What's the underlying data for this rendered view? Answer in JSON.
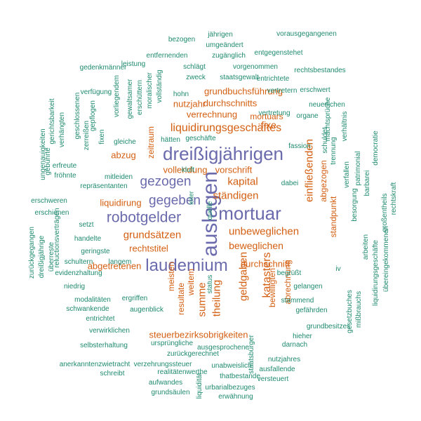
{
  "colors": {
    "large": "#6a6aad",
    "medium": "#d45f12",
    "small": "#1f8a6f"
  },
  "words": [
    {
      "text": "auslagen",
      "color": "large",
      "vertical": true
    },
    {
      "text": "mortuar",
      "color": "large"
    },
    {
      "text": "dreißigjährigen",
      "color": "large"
    },
    {
      "text": "laudemium",
      "color": "large"
    },
    {
      "text": "robotgelder",
      "color": "large"
    },
    {
      "text": "gegeben",
      "color": "large"
    },
    {
      "text": "gezogen",
      "color": "large"
    },
    {
      "text": "liquidirungsgeschäftes",
      "color": "medium"
    },
    {
      "text": "unbeweglichen",
      "color": "medium"
    },
    {
      "text": "beweglichen",
      "color": "medium"
    },
    {
      "text": "grundsätzen",
      "color": "medium"
    },
    {
      "text": "ständigen",
      "color": "medium"
    },
    {
      "text": "kapital",
      "color": "medium"
    },
    {
      "text": "einfließenden",
      "color": "medium",
      "vertical": true
    },
    {
      "text": "katasters",
      "color": "medium",
      "vertical": true
    },
    {
      "text": "geldgaben",
      "color": "medium",
      "vertical": true
    },
    {
      "text": "theilung",
      "color": "medium",
      "vertical": true
    },
    {
      "text": "summe",
      "color": "medium",
      "vertical": true
    },
    {
      "text": "fixe",
      "color": "medium"
    },
    {
      "text": "vollendung",
      "color": "medium"
    },
    {
      "text": "vorschrift",
      "color": "medium"
    },
    {
      "text": "verrechnung",
      "color": "medium"
    },
    {
      "text": "durchschnitts",
      "color": "medium"
    },
    {
      "text": "grundbuchsführung",
      "color": "medium"
    },
    {
      "text": "nutzjahr",
      "color": "medium"
    },
    {
      "text": "steuerbezirksobrigkeiten",
      "color": "medium"
    },
    {
      "text": "abgetretenen",
      "color": "medium"
    },
    {
      "text": "durchschnitt",
      "color": "medium"
    },
    {
      "text": "rechtstitel",
      "color": "medium"
    },
    {
      "text": "liquidirung",
      "color": "medium"
    },
    {
      "text": "abzug",
      "color": "medium"
    },
    {
      "text": "mortuars",
      "color": "medium"
    },
    {
      "text": "abgezogen",
      "color": "medium",
      "vertical": true
    },
    {
      "text": "standpunkt",
      "color": "medium",
      "vertical": true
    },
    {
      "text": "weitem",
      "color": "medium",
      "vertical": true
    },
    {
      "text": "resultate",
      "color": "medium",
      "vertical": true
    },
    {
      "text": "meisten",
      "color": "medium",
      "vertical": true
    },
    {
      "text": "bewilligten",
      "color": "medium",
      "vertical": true
    },
    {
      "text": "abrechnung",
      "color": "medium",
      "vertical": true
    },
    {
      "text": "zeitraum",
      "color": "medium",
      "vertical": true
    },
    {
      "text": "jährigen",
      "color": "small"
    },
    {
      "text": "vorausgegangenen",
      "color": "small"
    },
    {
      "text": "bezogen",
      "color": "small"
    },
    {
      "text": "umgeändert",
      "color": "small"
    },
    {
      "text": "zugänglich",
      "color": "small"
    },
    {
      "text": "entgegenstehet",
      "color": "small"
    },
    {
      "text": "entfernenden",
      "color": "small"
    },
    {
      "text": "leistung",
      "color": "small"
    },
    {
      "text": "schlägt",
      "color": "small"
    },
    {
      "text": "vorgenommen",
      "color": "small"
    },
    {
      "text": "zweck",
      "color": "small"
    },
    {
      "text": "staatsgewalt",
      "color": "small"
    },
    {
      "text": "entrichtete",
      "color": "small"
    },
    {
      "text": "rechtsbestandes",
      "color": "small"
    },
    {
      "text": "hohn",
      "color": "small"
    },
    {
      "text": "vertretern",
      "color": "small"
    },
    {
      "text": "erschwert",
      "color": "small"
    },
    {
      "text": "verfügung",
      "color": "small"
    },
    {
      "text": "vertretung",
      "color": "small"
    },
    {
      "text": "organe",
      "color": "small"
    },
    {
      "text": "neuerlichen",
      "color": "small"
    },
    {
      "text": "hätten",
      "color": "small"
    },
    {
      "text": "geschäfte",
      "color": "small"
    },
    {
      "text": "gleiche",
      "color": "small"
    },
    {
      "text": "kluft",
      "color": "small"
    },
    {
      "text": "erfreute",
      "color": "small"
    },
    {
      "text": "fröhnte",
      "color": "small"
    },
    {
      "text": "mitleiden",
      "color": "small"
    },
    {
      "text": "repräsentanten",
      "color": "small"
    },
    {
      "text": "dabei",
      "color": "small"
    },
    {
      "text": "erschweren",
      "color": "small"
    },
    {
      "text": "erschienen",
      "color": "small"
    },
    {
      "text": "setzt",
      "color": "small"
    },
    {
      "text": "handelte",
      "color": "small"
    },
    {
      "text": "geringste",
      "color": "small"
    },
    {
      "text": "schultern",
      "color": "small"
    },
    {
      "text": "langem",
      "color": "small"
    },
    {
      "text": "evidenzhaltung",
      "color": "small"
    },
    {
      "text": "niedrig",
      "color": "small"
    },
    {
      "text": "begrüßt",
      "color": "small"
    },
    {
      "text": "gelangen",
      "color": "small"
    },
    {
      "text": "stammend",
      "color": "small"
    },
    {
      "text": "gefährden",
      "color": "small"
    },
    {
      "text": "modalitäten",
      "color": "small"
    },
    {
      "text": "ergriffen",
      "color": "small"
    },
    {
      "text": "schwankende",
      "color": "small"
    },
    {
      "text": "augenblick",
      "color": "small"
    },
    {
      "text": "entrichtet",
      "color": "small"
    },
    {
      "text": "verwirklichen",
      "color": "small"
    },
    {
      "text": "grundbesitzes",
      "color": "small"
    },
    {
      "text": "hieher",
      "color": "small"
    },
    {
      "text": "selbsterhaltung",
      "color": "small"
    },
    {
      "text": "ursprüngliche",
      "color": "small"
    },
    {
      "text": "ausgesprochene",
      "color": "small"
    },
    {
      "text": "darnach",
      "color": "small"
    },
    {
      "text": "zurückgerechnet",
      "color": "small"
    },
    {
      "text": "anerkanntenzwietracht",
      "color": "small"
    },
    {
      "text": "verzehrungssteuer",
      "color": "small"
    },
    {
      "text": "unabweislich",
      "color": "small"
    },
    {
      "text": "nutzjahres",
      "color": "small"
    },
    {
      "text": "ausfallende",
      "color": "small"
    },
    {
      "text": "schreibt",
      "color": "small"
    },
    {
      "text": "realitätenwerthe",
      "color": "small"
    },
    {
      "text": "thatbestande",
      "color": "small"
    },
    {
      "text": "versteuert",
      "color": "small"
    },
    {
      "text": "aufwandes",
      "color": "small"
    },
    {
      "text": "urbarialbezuges",
      "color": "small"
    },
    {
      "text": "grundsäulen",
      "color": "small"
    },
    {
      "text": "erwähnung",
      "color": "small"
    },
    {
      "text": "gedenkmänner",
      "color": "small"
    },
    {
      "text": "vorliegendem",
      "color": "small",
      "vertical": true
    },
    {
      "text": "gewaltsamer",
      "color": "small",
      "vertical": true
    },
    {
      "text": "erschüttern",
      "color": "small",
      "vertical": true
    },
    {
      "text": "moralischer",
      "color": "small",
      "vertical": true
    },
    {
      "text": "vollständig",
      "color": "small",
      "vertical": true
    },
    {
      "text": "geschlossenen",
      "color": "small",
      "vertical": true
    },
    {
      "text": "zerreißen",
      "color": "small",
      "vertical": true
    },
    {
      "text": "gepflogen",
      "color": "small",
      "vertical": true
    },
    {
      "text": "fixen",
      "color": "small",
      "vertical": true
    },
    {
      "text": "gerichtsbarkeit",
      "color": "small",
      "vertical": true
    },
    {
      "text": "verhängten",
      "color": "small",
      "vertical": true
    },
    {
      "text": "gebührte",
      "color": "small",
      "vertical": true
    },
    {
      "text": "ungenauigkeiten",
      "color": "small",
      "vertical": true
    },
    {
      "text": "machtsprüche",
      "color": "small",
      "vertical": true
    },
    {
      "text": "verhältnis",
      "color": "small",
      "vertical": true
    },
    {
      "text": "fassion",
      "color": "small"
    },
    {
      "text": "schuldet",
      "color": "small",
      "vertical": true
    },
    {
      "text": "trennung",
      "color": "small",
      "vertical": true
    },
    {
      "text": "verfallen",
      "color": "small",
      "vertical": true
    },
    {
      "text": "patrimonial",
      "color": "small",
      "vertical": true
    },
    {
      "text": "barbarei",
      "color": "small",
      "vertical": true
    },
    {
      "text": "democratie",
      "color": "small",
      "vertical": true
    },
    {
      "text": "großentheils",
      "color": "small",
      "vertical": true
    },
    {
      "text": "rechtskraft",
      "color": "small",
      "vertical": true
    },
    {
      "text": "zurückgegangen",
      "color": "small",
      "vertical": true
    },
    {
      "text": "dreißigjährige",
      "color": "small",
      "vertical": true
    },
    {
      "text": "reluctionsverträgen",
      "color": "small",
      "vertical": true
    },
    {
      "text": "überreste",
      "color": "small",
      "vertical": true
    },
    {
      "text": "status",
      "color": "small",
      "vertical": true
    },
    {
      "text": "staatsbürger",
      "color": "small",
      "vertical": true
    },
    {
      "text": "leiter",
      "color": "small",
      "vertical": true
    },
    {
      "text": "iv",
      "color": "small"
    },
    {
      "text": "besorgung",
      "color": "small",
      "vertical": true
    },
    {
      "text": "arbeiten",
      "color": "small",
      "vertical": true
    },
    {
      "text": "liquidirungsgeschäfte",
      "color": "small",
      "vertical": true
    },
    {
      "text": "übereingekommenen",
      "color": "small",
      "vertical": true
    },
    {
      "text": "gesetzbuches",
      "color": "small",
      "vertical": true
    },
    {
      "text": "mißbrauchs",
      "color": "small",
      "vertical": true
    },
    {
      "text": "liquidität",
      "color": "small",
      "vertical": true
    },
    {
      "text": "quelle",
      "color": "small",
      "vertical": true
    }
  ]
}
